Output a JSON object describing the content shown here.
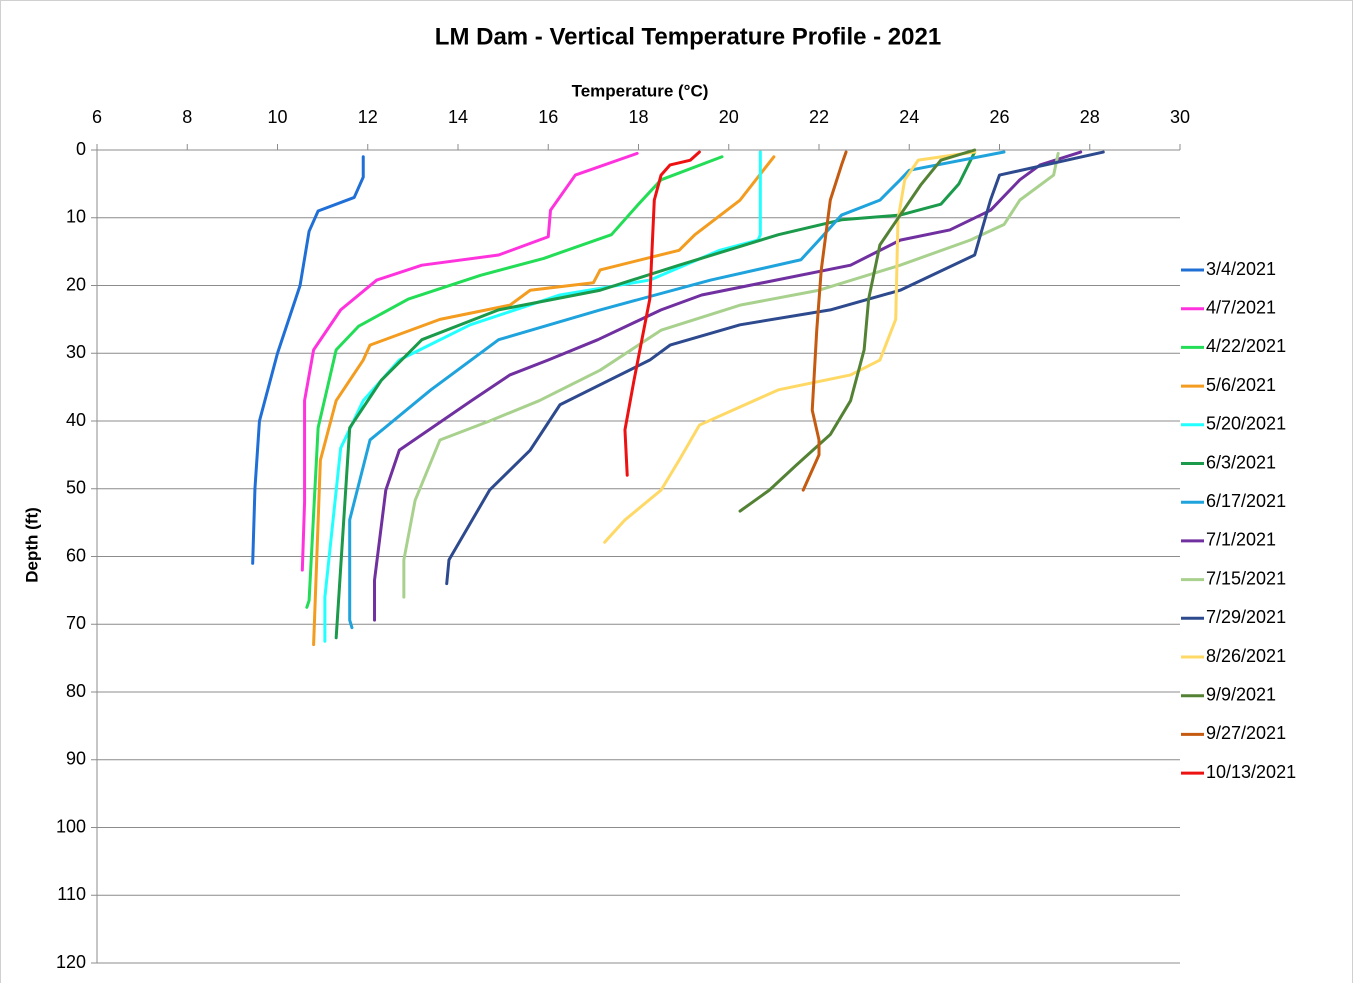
{
  "chart_data": {
    "type": "line",
    "title": "LM Dam - Vertical Temperature Profile - 2021",
    "x_label": "Temperature (°C)",
    "y_label": "Depth (ft)",
    "xlim": [
      6,
      30
    ],
    "xticks": [
      6,
      8,
      10,
      12,
      14,
      16,
      18,
      20,
      22,
      24,
      26,
      28,
      30
    ],
    "ylim": [
      0,
      120
    ],
    "yticks": [
      0,
      10,
      20,
      30,
      40,
      50,
      60,
      70,
      80,
      90,
      100,
      110,
      120
    ],
    "y_inverted": true,
    "x_axis_top": true,
    "grid": true,
    "legend": "right",
    "series": [
      {
        "name": "3/4/2021",
        "color": "#1f6fd6",
        "x": [
          11.9,
          11.9,
          11.7,
          10.9,
          10.7,
          10.5,
          10.0,
          9.6,
          9.5,
          9.45
        ],
        "values": [
          1,
          4,
          7,
          9,
          12,
          20,
          30,
          40,
          50,
          61
        ]
      },
      {
        "name": "4/7/2021",
        "color": "#ff33dd",
        "x": [
          17.97,
          16.6,
          16.05,
          16.0,
          14.9,
          13.2,
          12.2,
          11.4,
          10.8,
          10.6,
          10.6,
          10.55
        ],
        "values": [
          0.5,
          3.7,
          8.9,
          12.8,
          15.5,
          17,
          19.2,
          23.6,
          29.5,
          37,
          52,
          62
        ]
      },
      {
        "name": "4/22/2021",
        "color": "#22dd55",
        "x": [
          19.85,
          18.5,
          18.0,
          17.4,
          15.9,
          14.5,
          12.9,
          11.8,
          11.3,
          10.9,
          10.7,
          10.65
        ],
        "values": [
          1,
          4.4,
          8,
          12.5,
          16,
          18.5,
          22,
          26,
          29.5,
          41,
          66.5,
          67.5
        ]
      },
      {
        "name": "5/6/2021",
        "color": "#f39c1f",
        "x": [
          21.0,
          20.25,
          19.25,
          18.9,
          17.15,
          17.0,
          15.6,
          15.15,
          13.6,
          12.05,
          11.9,
          11.3,
          10.95,
          10.8
        ],
        "values": [
          1,
          7.4,
          12.5,
          14.8,
          17.7,
          19.6,
          20.7,
          22.9,
          25,
          28.8,
          31,
          37,
          45.8,
          73
        ]
      },
      {
        "name": "5/20/2021",
        "color": "#22ffff",
        "x": [
          20.7,
          20.7,
          20.65,
          19.8,
          18.25,
          16.26,
          14.27,
          12.7,
          11.9,
          11.4,
          11.05,
          11.05
        ],
        "values": [
          0.3,
          12.5,
          13.3,
          14.8,
          19.2,
          21.4,
          25.8,
          31,
          37,
          44,
          66,
          72.5
        ]
      },
      {
        "name": "6/3/2021",
        "color": "#1a9a4a",
        "x": [
          25.45,
          25.1,
          24.7,
          23.8,
          22.5,
          21.1,
          18.9,
          17.15,
          14.9,
          13.2,
          12.3,
          11.6,
          11.3
        ],
        "values": [
          0.3,
          5,
          8,
          9.6,
          10.3,
          12.5,
          17,
          20.7,
          23.6,
          28,
          34,
          41,
          72
        ]
      },
      {
        "name": "6/17/2021",
        "color": "#1fa3dc",
        "x": [
          26.1,
          24.0,
          23.8,
          23.35,
          22.5,
          22.0,
          21.6,
          19.6,
          17.15,
          14.9,
          13.4,
          12.05,
          11.6,
          11.6,
          11.65
        ],
        "values": [
          0.3,
          3,
          4.4,
          7.4,
          9.6,
          13.3,
          16.2,
          19.2,
          23.6,
          28,
          35.4,
          42.8,
          54.6,
          69.4,
          70.5
        ]
      },
      {
        "name": "7/1/2021",
        "color": "#7030a0",
        "x": [
          27.8,
          26.9,
          26.45,
          25.8,
          24.9,
          23.8,
          22.7,
          19.4,
          18.5,
          17.1,
          16.0,
          15.15,
          14.3,
          12.7,
          12.4,
          12.15,
          12.15
        ],
        "values": [
          0.3,
          2.2,
          4.4,
          8.9,
          11.8,
          13.3,
          17,
          21.4,
          23.6,
          28,
          31,
          33.2,
          37,
          44.3,
          50.2,
          63.5,
          69.4
        ]
      },
      {
        "name": "7/15/2021",
        "color": "#a9d18e",
        "x": [
          27.3,
          27.2,
          26.45,
          26.1,
          25.35,
          23.8,
          22.0,
          20.25,
          18.5,
          17.15,
          15.8,
          14.7,
          13.6,
          13.05,
          12.8,
          12.8
        ],
        "values": [
          0.5,
          3.7,
          7.4,
          11,
          13.3,
          17,
          20.7,
          22.9,
          26.6,
          32.5,
          37,
          40,
          42.8,
          51.7,
          60.5,
          66
        ]
      },
      {
        "name": "7/29/2021",
        "color": "#2e4a8e",
        "x": [
          28.3,
          26.0,
          25.8,
          25.45,
          23.8,
          22.25,
          20.25,
          18.7,
          18.25,
          16.26,
          15.6,
          14.7,
          13.8,
          13.75
        ],
        "values": [
          0.3,
          3.7,
          7.4,
          15.5,
          20.7,
          23.6,
          25.8,
          28.8,
          31,
          37.6,
          44.3,
          50.2,
          60.5,
          64
        ]
      },
      {
        "name": "8/26/2021",
        "color": "#ffd966",
        "x": [
          25.45,
          24.2,
          23.9,
          23.75,
          23.7,
          23.35,
          22.7,
          21.1,
          19.35,
          18.9,
          18.5,
          17.7,
          17.25
        ],
        "values": [
          0.3,
          1.5,
          4.4,
          10.3,
          25,
          31,
          33.2,
          35.4,
          40.6,
          45.8,
          50.2,
          54.6,
          57.9
        ]
      },
      {
        "name": "9/9/2021",
        "color": "#548235",
        "x": [
          25.45,
          24.7,
          24.25,
          23.8,
          23.35,
          23.1,
          23.0,
          22.7,
          22.25,
          21.5,
          20.9,
          20.25
        ],
        "values": [
          0,
          1.5,
          5.2,
          9.6,
          14,
          22,
          29.5,
          37,
          42,
          46.5,
          50.2,
          53.3
        ]
      },
      {
        "name": "9/27/2021",
        "color": "#c55a11",
        "x": [
          22.6,
          22.5,
          22.25,
          22.05,
          21.95,
          21.85,
          22.0,
          22.0,
          21.65
        ],
        "values": [
          0.3,
          2.2,
          7.4,
          17.7,
          26.6,
          38.4,
          42.8,
          45,
          50.2
        ]
      },
      {
        "name": "10/13/2021",
        "color": "#ee1111",
        "x": [
          19.35,
          19.15,
          18.7,
          18.5,
          18.35,
          18.25,
          17.9,
          17.7,
          17.75
        ],
        "values": [
          0.3,
          1.5,
          2.2,
          3.7,
          7.4,
          22,
          34,
          41.3,
          48
        ]
      }
    ]
  }
}
